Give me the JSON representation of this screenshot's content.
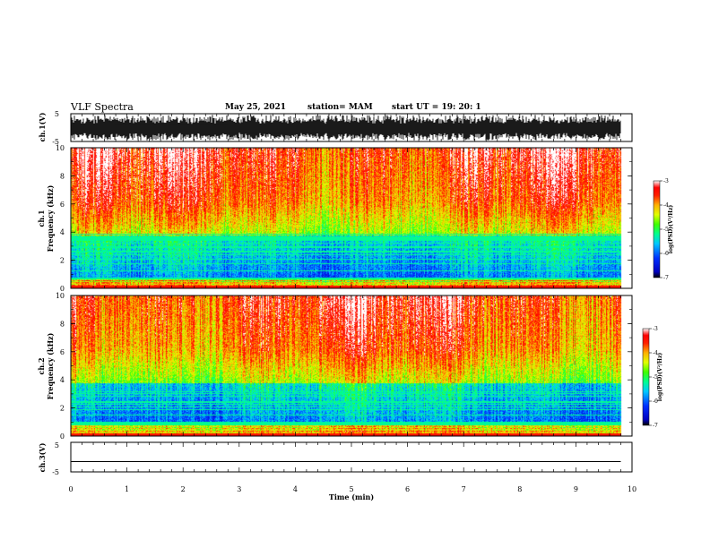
{
  "header": {
    "title": "VLF Spectra",
    "date": "May 25, 2021",
    "station": "station= MAM",
    "start": "start  UT =   19: 20: 1"
  },
  "chart_data": [
    {
      "type": "line",
      "panel": "ch1-waveform",
      "ylabel": "ch.1(V)",
      "ylim": [
        -5,
        5
      ],
      "yticks": [
        "5",
        "-5"
      ],
      "x": [
        0,
        9.8
      ],
      "description_values": {
        "envelope_min": -5,
        "envelope_max": 5
      }
    },
    {
      "type": "heatmap",
      "panel": "ch1-spectrogram",
      "ylabel_lines": [
        "ch.1",
        "Frequency  (kHz)"
      ],
      "ylim": [
        0,
        10
      ],
      "yticks": [
        "0",
        "2",
        "4",
        "6",
        "8",
        "10"
      ],
      "xlim": [
        0,
        10
      ],
      "colorbar": {
        "label": "log(PSD)(V²/Hz)",
        "range": [
          -7,
          -3
        ],
        "ticks": [
          "-3",
          "-4",
          "-5",
          "-6",
          "-7"
        ]
      }
    },
    {
      "type": "heatmap",
      "panel": "ch2-spectrogram",
      "ylabel_lines": [
        "ch.2",
        "Frequency  (kHz)"
      ],
      "ylim": [
        0,
        10
      ],
      "yticks": [
        "0",
        "2",
        "4",
        "6",
        "8",
        "10"
      ],
      "xlim": [
        0,
        10
      ],
      "colorbar": {
        "label": "log(PSD)(V²/Hz)",
        "range": [
          -7,
          -3
        ],
        "ticks": [
          "-3",
          "-4",
          "-5",
          "-6",
          "-7"
        ]
      }
    },
    {
      "type": "line",
      "panel": "ch3-waveform",
      "ylabel": "ch.3(V)",
      "ylim": [
        -5,
        5
      ],
      "yticks": [
        "5",
        "-5"
      ],
      "x": [
        0,
        9.8
      ],
      "y": [
        -1.5,
        -1.5
      ]
    }
  ],
  "xaxis": {
    "label": "Time  (min)",
    "ticks": [
      "0",
      "1",
      "2",
      "3",
      "4",
      "5",
      "6",
      "7",
      "8",
      "9",
      "10"
    ],
    "range": [
      0,
      10
    ],
    "data_end": 9.8
  },
  "colors": {
    "frame": "#000000",
    "colormap": [
      "#000000",
      "#0000cc",
      "#0000ff",
      "#00a0ff",
      "#00ffff",
      "#00ff80",
      "#66ff00",
      "#ffff00",
      "#ffa000",
      "#ff2000",
      "#ff0000",
      "#ffffff"
    ]
  }
}
